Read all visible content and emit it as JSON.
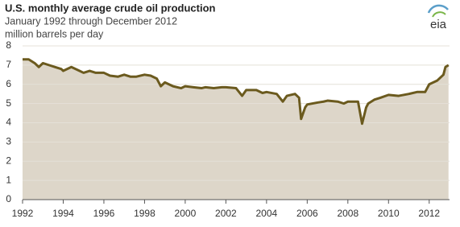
{
  "chart_data": {
    "type": "area",
    "title": "U.S. monthly average  crude oil production",
    "subtitle": "January 1992 through December 2012",
    "unit_label": "million barrels per day",
    "logo": "eia",
    "x": [
      1992.0,
      1992.3,
      1992.6,
      1992.8,
      1993.0,
      1993.3,
      1993.6,
      1993.9,
      1994.0,
      1994.4,
      1994.8,
      1995.0,
      1995.3,
      1995.6,
      1995.9,
      1996.0,
      1996.3,
      1996.7,
      1997.0,
      1997.3,
      1997.6,
      1998.0,
      1998.3,
      1998.6,
      1998.8,
      1999.0,
      1999.4,
      1999.8,
      2000.0,
      2000.4,
      2000.8,
      2001.0,
      2001.4,
      2001.8,
      2002.0,
      2002.5,
      2002.8,
      2003.0,
      2003.5,
      2003.8,
      2004.0,
      2004.5,
      2004.8,
      2005.0,
      2005.4,
      2005.6,
      2005.7,
      2005.9,
      2006.0,
      2006.5,
      2006.8,
      2007.0,
      2007.5,
      2007.8,
      2008.0,
      2008.5,
      2008.7,
      2008.9,
      2009.0,
      2009.3,
      2009.6,
      2010.0,
      2010.5,
      2011.0,
      2011.4,
      2011.8,
      2012.0,
      2012.4,
      2012.7,
      2012.8,
      2012.95
    ],
    "values": [
      7.3,
      7.3,
      7.1,
      6.9,
      7.1,
      7.0,
      6.9,
      6.8,
      6.7,
      6.9,
      6.7,
      6.6,
      6.7,
      6.6,
      6.6,
      6.6,
      6.45,
      6.4,
      6.5,
      6.4,
      6.4,
      6.5,
      6.45,
      6.3,
      5.9,
      6.1,
      5.9,
      5.8,
      5.9,
      5.85,
      5.8,
      5.85,
      5.8,
      5.85,
      5.85,
      5.8,
      5.4,
      5.7,
      5.7,
      5.55,
      5.6,
      5.5,
      5.1,
      5.4,
      5.5,
      5.3,
      4.2,
      4.8,
      4.95,
      5.05,
      5.1,
      5.15,
      5.1,
      5.0,
      5.1,
      5.1,
      3.95,
      4.8,
      5.0,
      5.2,
      5.3,
      5.45,
      5.4,
      5.5,
      5.6,
      5.6,
      6.0,
      6.2,
      6.5,
      6.9,
      7.0
    ],
    "color": "#6b5a1e",
    "fill": "#ddd6c9",
    "xlim": [
      1992,
      2013
    ],
    "xticks": [
      1992,
      1994,
      1996,
      1998,
      2000,
      2002,
      2004,
      2006,
      2008,
      2010,
      2012
    ],
    "ylim": [
      0,
      8
    ],
    "yticks": [
      0,
      1,
      2,
      3,
      4,
      5,
      6,
      7,
      8
    ],
    "grid": true
  }
}
